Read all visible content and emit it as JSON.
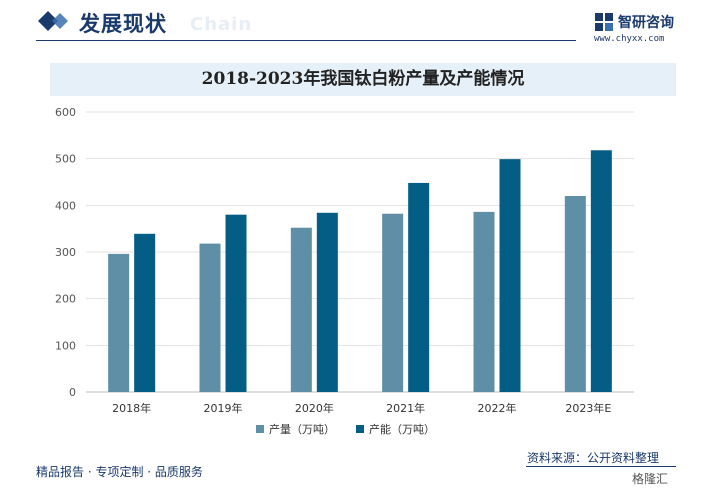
{
  "header": {
    "title": "发展现状",
    "watermark": "Chain",
    "brand_name": "智研咨询",
    "brand_url": "www.chyxx.com",
    "brand_icon": "zhiyan-logo-icon"
  },
  "chart_data": {
    "type": "bar",
    "title": "2018-2023年我国钛白粉产量及产能情况",
    "categories": [
      "2018年",
      "2019年",
      "2020年",
      "2021年",
      "2022年",
      "2023年E"
    ],
    "series": [
      {
        "name": "产量（万吨）",
        "color": "#5f8ea7",
        "values": [
          296,
          318,
          352,
          382,
          386,
          420
        ]
      },
      {
        "name": "产能（万吨）",
        "color": "#045d84",
        "values": [
          339,
          380,
          384,
          448,
          499,
          518
        ]
      }
    ],
    "y_ticks": [
      0,
      100,
      200,
      300,
      400,
      500,
      600
    ],
    "ylim": [
      0,
      600
    ],
    "grid": true,
    "legend_position": "bottom-center"
  },
  "footer": {
    "left_text": "精品报告 · 专项定制 · 品质服务",
    "source_text": "资料来源：公开资料整理",
    "corner_text": "格隆汇"
  }
}
